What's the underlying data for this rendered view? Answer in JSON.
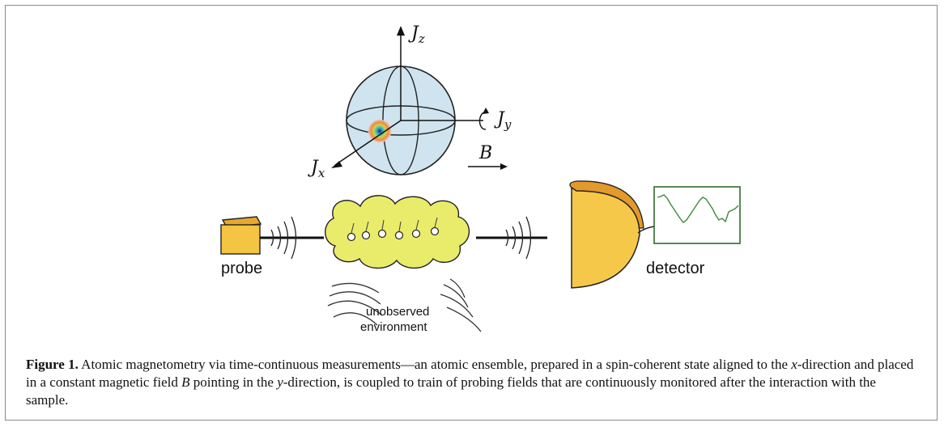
{
  "axes": {
    "jz": {
      "main": "J",
      "sub": "z"
    },
    "jy": {
      "main": "J",
      "sub": "y"
    },
    "jx": {
      "main": "J",
      "sub": "x"
    },
    "field": "B"
  },
  "labels": {
    "probe": "probe",
    "detector": "detector",
    "environment_line1": "unobserved",
    "environment_line2": "environment"
  },
  "caption": {
    "lead": "Figure 1.",
    "part1": " Atomic magnetometry via time-continuous measurements—an atomic ensemble, prepared in a spin-coherent state aligned to the ",
    "x_var": "x",
    "part2": "-direction and placed in a constant magnetic field ",
    "b_var": "B",
    "part3": " pointing in the ",
    "y_var": "y",
    "part4": "-direction, is coupled to train of probing fields that are continuously monitored after the interaction with the sample."
  },
  "colors": {
    "sphere_fill": "#cfe4ee",
    "probe_fill": "#f4c542",
    "cloud_fill": "#e9ec6a",
    "detector_fill": "#f6c84a",
    "detector_rim": "#e39a2a",
    "signal_trace": "#3d8a3d"
  }
}
